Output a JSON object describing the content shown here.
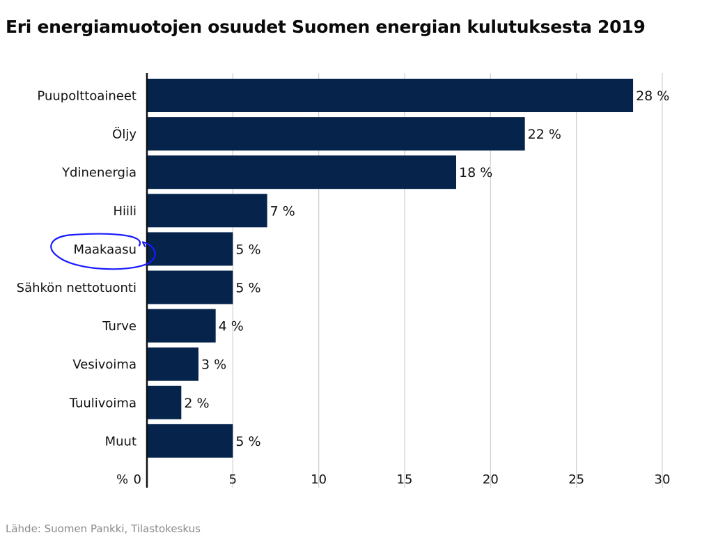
{
  "colors": {
    "bar": "#05234b",
    "grid": "#cfcfcf",
    "axis": "#111111",
    "annotation": "#1a1aff"
  },
  "chart_data": {
    "type": "bar",
    "orientation": "horizontal",
    "title": "Eri energiamuotojen osuudet Suomen energian kulutuksesta 2019",
    "categories": [
      "Puupolttoaineet",
      "Öljy",
      "Ydinenergia",
      "Hiili",
      "Maakaasu",
      "Sähkön nettotuonti",
      "Turve",
      "Vesivoima",
      "Tuulivoima",
      "Muut"
    ],
    "values": [
      28.3,
      22,
      18,
      7,
      5,
      5,
      4,
      3,
      2,
      5
    ],
    "value_labels": [
      "28 %",
      "22 %",
      "18 %",
      "7 %",
      "5 %",
      "5 %",
      "4 %",
      "3 %",
      "2 %",
      "5 %"
    ],
    "xlim": [
      0,
      30
    ],
    "xticks": [
      0,
      5,
      10,
      15,
      20,
      25,
      30
    ],
    "xtick_labels": [
      "0",
      "5",
      "10",
      "15",
      "20",
      "25",
      "30"
    ],
    "axis_unit_label": "%",
    "grid": "vertical",
    "highlighted_category": "Maakaasu",
    "source": "Lähde: Suomen Pankki, Tilastokeskus"
  }
}
